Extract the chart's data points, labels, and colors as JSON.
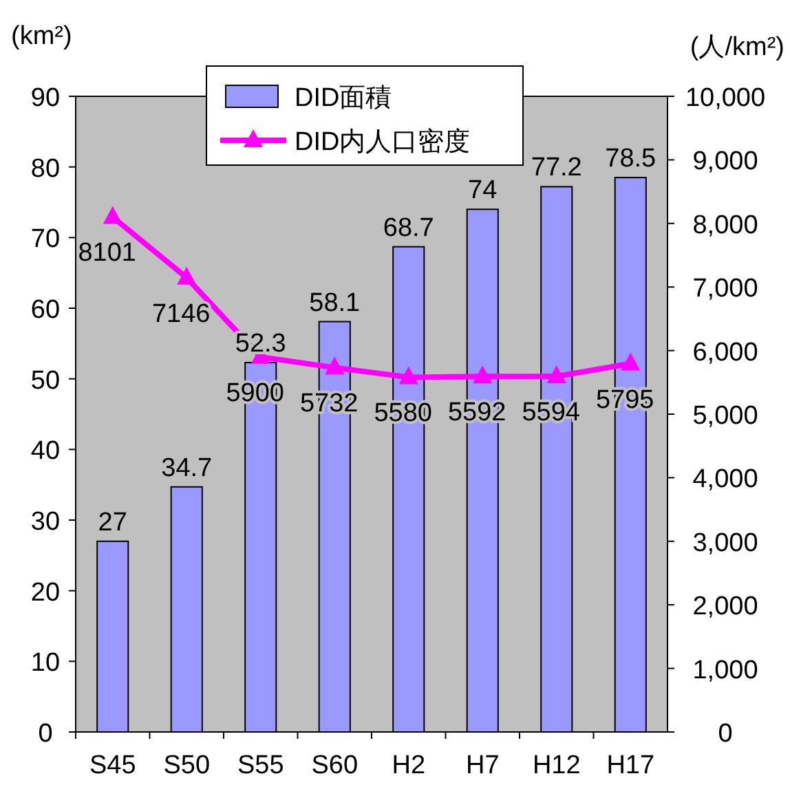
{
  "chart_data": {
    "type": "bar",
    "categories": [
      "S45",
      "S50",
      "S55",
      "S60",
      "H2",
      "H7",
      "H12",
      "H17"
    ],
    "series": [
      {
        "name": "DID面積",
        "color": "#9999ff",
        "values": [
          27,
          34.7,
          52.3,
          58.1,
          68.7,
          74,
          77.2,
          78.5
        ]
      },
      {
        "name": "DID内人口密度",
        "type": "line",
        "axis": "y2",
        "color": "#ff00ff",
        "values": [
          8101,
          7146,
          5900,
          5732,
          5580,
          5592,
          5594,
          5795
        ]
      }
    ],
    "ylabel": "(km²)",
    "y2label": "(人/km²)",
    "ylim": [
      0,
      90
    ],
    "yticks": [
      0,
      10,
      20,
      30,
      40,
      50,
      60,
      70,
      80,
      90
    ],
    "y2lim": [
      0,
      10000
    ],
    "y2ticks": [
      0,
      {
        "value": 1000,
        "label": "1,000"
      },
      {
        "value": 2000,
        "label": "2,000"
      },
      {
        "value": 3000,
        "label": "3,000"
      },
      {
        "value": 4000,
        "label": "4,000"
      },
      {
        "value": 5000,
        "label": "5,000"
      },
      {
        "value": 6000,
        "label": "6,000"
      },
      {
        "value": 7000,
        "label": "7,000"
      },
      {
        "value": 8000,
        "label": "8,000"
      },
      {
        "value": 9000,
        "label": "9,000"
      },
      {
        "value": 10000,
        "label": "10,000"
      }
    ],
    "marker": "triangle",
    "data_labels": true,
    "legend": "top",
    "grid": false
  }
}
